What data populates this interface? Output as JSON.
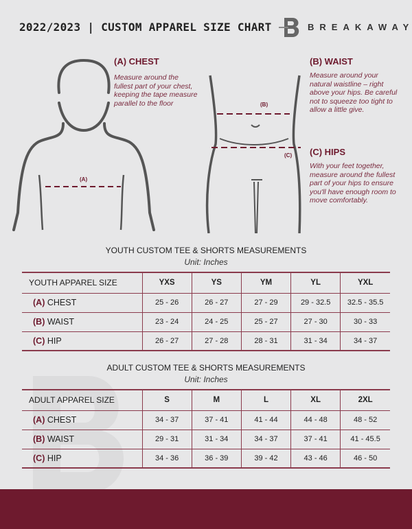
{
  "header": {
    "title": "2022/2023 | CUSTOM APPAREL SIZE CHART",
    "brand": "BREAKAWAY",
    "logo_letter": "B"
  },
  "guide": {
    "chest": {
      "heading": "(A) CHEST",
      "text": "Measure around the fullest part of your chest, keeping the tape measure parallel to the floor",
      "marker": "(A)"
    },
    "waist": {
      "heading": "(B) WAIST",
      "text": "Measure around your natural waistline – right above your hips. Be careful not to squeeze too tight to allow a little give.",
      "marker": "(B)"
    },
    "hips": {
      "heading": "(C) HIPS",
      "text": "With your feet together, measure around the fullest part of your hips to ensure you'll have enough room to move comfortably.",
      "marker": "(C)"
    }
  },
  "colors": {
    "accent": "#6e1a2e",
    "background": "#e7e7e8"
  },
  "youth": {
    "title": "YOUTH CUSTOM TEE & SHORTS MEASUREMENTS",
    "unit": "Unit: Inches",
    "header": "YOUTH APPAREL SIZE",
    "sizes": [
      "YXS",
      "YS",
      "YM",
      "YL",
      "YXL"
    ],
    "rows": [
      {
        "code": "(A)",
        "name": "CHEST",
        "values": [
          "25 - 26",
          "26 - 27",
          "27 - 29",
          "29 - 32.5",
          "32.5 - 35.5"
        ]
      },
      {
        "code": "(B)",
        "name": "WAIST",
        "values": [
          "23 - 24",
          "24 - 25",
          "25 - 27",
          "27 - 30",
          "30 - 33"
        ]
      },
      {
        "code": "(C)",
        "name": "HIP",
        "values": [
          "26 - 27",
          "27 - 28",
          "28 - 31",
          "31 - 34",
          "34 - 37"
        ]
      }
    ]
  },
  "adult": {
    "title": "ADULT CUSTOM TEE & SHORTS MEASUREMENTS",
    "unit": "Unit: Inches",
    "header": "ADULT APPAREL SIZE",
    "sizes": [
      "S",
      "M",
      "L",
      "XL",
      "2XL"
    ],
    "rows": [
      {
        "code": "(A)",
        "name": "CHEST",
        "values": [
          "34 - 37",
          "37 - 41",
          "41 - 44",
          "44 - 48",
          "48 - 52"
        ]
      },
      {
        "code": "(B)",
        "name": "WAIST",
        "values": [
          "29 - 31",
          "31 - 34",
          "34 - 37",
          "37 - 41",
          "41 - 45.5"
        ]
      },
      {
        "code": "(C)",
        "name": "HIP",
        "values": [
          "34 - 36",
          "36 - 39",
          "39 - 42",
          "43 - 46",
          "46 - 50"
        ]
      }
    ]
  }
}
